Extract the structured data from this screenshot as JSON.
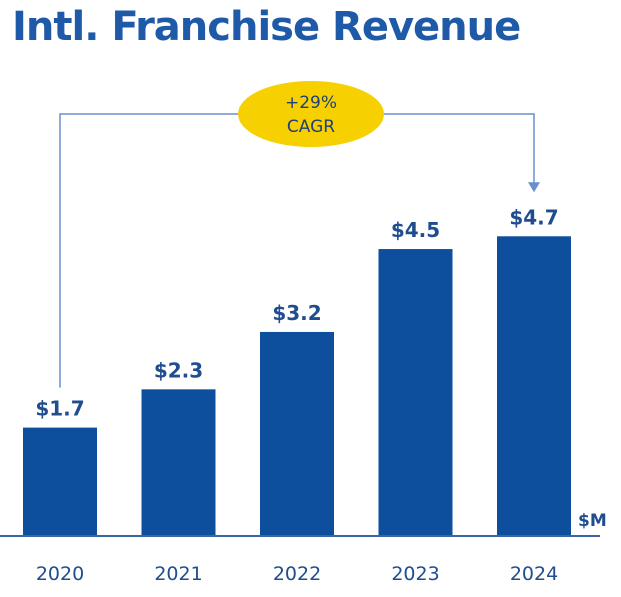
{
  "chart_data": {
    "type": "bar",
    "title": "Intl. Franchise Revenue",
    "categories": [
      "2020",
      "2021",
      "2022",
      "2023",
      "2024"
    ],
    "values": [
      1.7,
      2.3,
      3.2,
      4.5,
      4.7
    ],
    "data_labels": [
      "$1.7",
      "$2.3",
      "$3.2",
      "$4.5",
      "$4.7"
    ],
    "unit_label": "$M",
    "ylim": [
      0,
      5.5
    ],
    "xlabel": "",
    "ylabel": "",
    "grid": false,
    "annotation": {
      "line1": "+29%",
      "line2": "CAGR",
      "from_category": "2020",
      "to_category": "2024"
    },
    "colors": {
      "bar": "#0d4f9c",
      "label": "#1f4d8f",
      "title": "#1f5aa8",
      "axis": "#3a63a8",
      "bracket": "#6a8fd0",
      "badge": "#f6d000"
    }
  }
}
